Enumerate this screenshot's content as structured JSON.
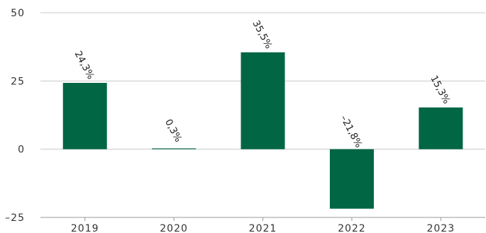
{
  "chart_data": {
    "type": "bar",
    "categories": [
      "2019",
      "2020",
      "2021",
      "2022",
      "2023"
    ],
    "values": [
      24.3,
      0.3,
      35.5,
      -21.8,
      15.3
    ],
    "data_labels": [
      "24,3%",
      "0,3%",
      "35,5%",
      "–21,8%",
      "15,3%"
    ],
    "y_ticks": [
      -25,
      0,
      25,
      50
    ],
    "y_tick_labels": [
      "–25",
      "0",
      "25",
      "50"
    ],
    "ylim": [
      -25,
      50
    ],
    "grid": true,
    "title": "",
    "xlabel": "",
    "ylabel": "",
    "colors": {
      "bar": "#006644",
      "grid": "#c8c8c8",
      "axis": "#999999"
    }
  }
}
